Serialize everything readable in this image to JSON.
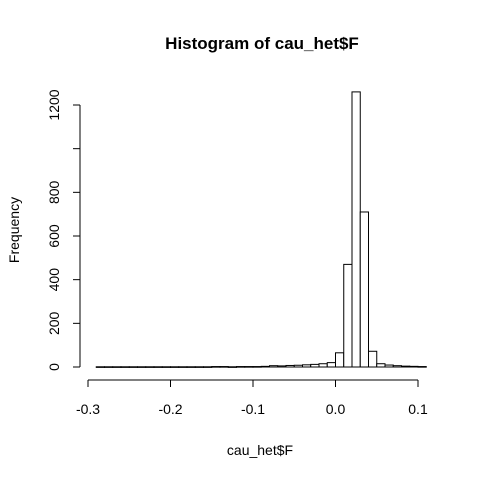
{
  "chart_data": {
    "type": "bar",
    "subtype": "histogram",
    "title": "Histogram of cau_het$F",
    "xlabel": "cau_het$F",
    "ylabel": "Frequency",
    "bin_width": 0.01,
    "bin_start": -0.29,
    "values": [
      1,
      1,
      1,
      1,
      1,
      1,
      1,
      1,
      1,
      1,
      1,
      1,
      1,
      1,
      2,
      2,
      1,
      2,
      2,
      2,
      3,
      6,
      5,
      7,
      8,
      10,
      12,
      15,
      20,
      65,
      470,
      1260,
      710,
      72,
      15,
      9,
      6,
      4,
      3,
      2
    ],
    "xlim": [
      -0.29,
      0.11
    ],
    "ylim": [
      0,
      1260
    ],
    "x_ticks": [
      -0.3,
      -0.2,
      -0.1,
      0.0,
      0.1
    ],
    "x_tick_labels": [
      "-0.3",
      "-0.2",
      "-0.1",
      "0.0",
      "0.1"
    ],
    "y_ticks": [
      0,
      200,
      400,
      600,
      800,
      1000,
      1200
    ],
    "y_tick_labels": [
      "0",
      "200",
      "400",
      "600",
      "800",
      "",
      "1200"
    ],
    "grid": false,
    "legend": "none"
  }
}
